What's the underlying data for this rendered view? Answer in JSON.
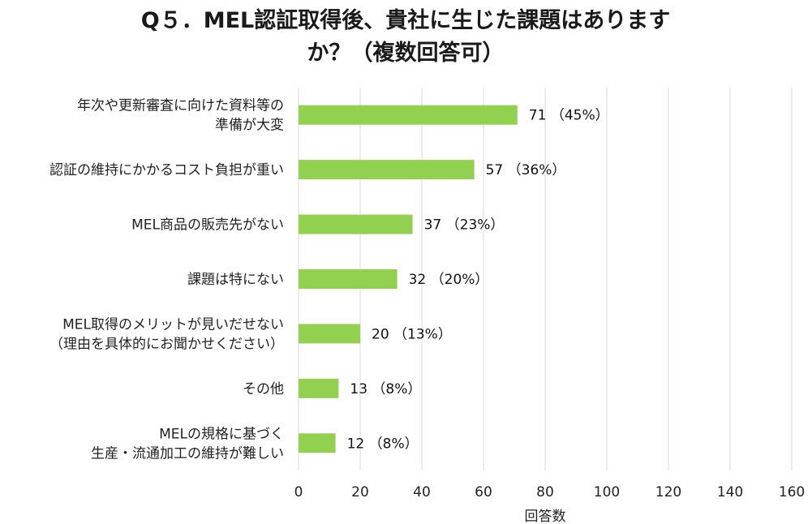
{
  "chart_data": {
    "type": "bar",
    "orientation": "horizontal",
    "title": "Q５．MEL認証取得後、貴社に生じた課題はありますか？（複数回答可）",
    "categories": [
      [
        "年次や更新審査に向けた資料等の",
        "準備が大変"
      ],
      [
        "認証の維持にかかるコスト負担が重い"
      ],
      [
        "MEL商品の販売先がない"
      ],
      [
        "課題は特にない"
      ],
      [
        "MEL取得のメリットが見いだせない",
        "（理由を具体的にお聞かせください）"
      ],
      [
        "その他"
      ],
      [
        "MELの規格に基づく",
        "生産・流通加工の維持が難しい"
      ]
    ],
    "values": [
      71,
      57,
      37,
      32,
      20,
      13,
      12
    ],
    "data_labels": [
      "71 （45%）",
      "57 （36%）",
      "37 （23%）",
      "32 （20%）",
      "20 （13%）",
      "13 （8%）",
      "12 （8%）"
    ],
    "xlabel": "回答数",
    "ylabel": "",
    "xlim": [
      0,
      160
    ],
    "xticks": [
      0,
      20,
      40,
      60,
      80,
      100,
      120,
      140,
      160
    ],
    "grid": "vertical",
    "bar_color": "#92d050",
    "grid_color": "#d9d9d9"
  }
}
